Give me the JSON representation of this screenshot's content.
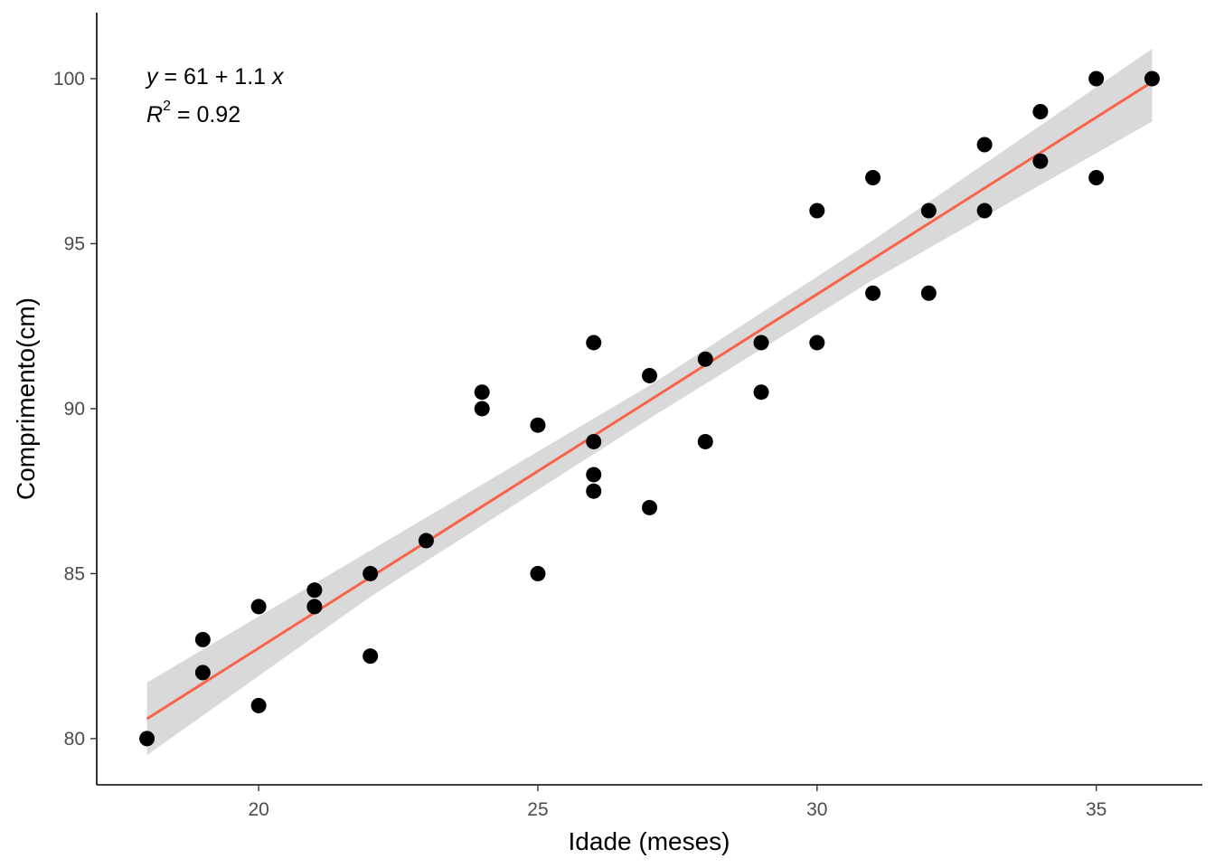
{
  "chart_data": {
    "type": "scatter",
    "title": "",
    "xlabel": "Idade (meses)",
    "ylabel": "Comprimento(cm)",
    "xlim": [
      17.1,
      36.9
    ],
    "ylim": [
      78.6,
      102.0
    ],
    "x_ticks": [
      20,
      25,
      30,
      35
    ],
    "y_ticks": [
      80,
      85,
      90,
      95,
      100
    ],
    "grid": false,
    "legend": "none",
    "points": [
      {
        "x": 18,
        "y": 80
      },
      {
        "x": 19,
        "y": 83
      },
      {
        "x": 19,
        "y": 82
      },
      {
        "x": 20,
        "y": 84
      },
      {
        "x": 20,
        "y": 81
      },
      {
        "x": 21,
        "y": 84.5
      },
      {
        "x": 21,
        "y": 84
      },
      {
        "x": 22,
        "y": 85
      },
      {
        "x": 22,
        "y": 82.5
      },
      {
        "x": 23,
        "y": 86
      },
      {
        "x": 24,
        "y": 90.5
      },
      {
        "x": 24,
        "y": 90
      },
      {
        "x": 25,
        "y": 89.5
      },
      {
        "x": 25,
        "y": 85
      },
      {
        "x": 26,
        "y": 92
      },
      {
        "x": 26,
        "y": 89
      },
      {
        "x": 26,
        "y": 88
      },
      {
        "x": 26,
        "y": 87.5
      },
      {
        "x": 27,
        "y": 91
      },
      {
        "x": 27,
        "y": 87
      },
      {
        "x": 28,
        "y": 91.5
      },
      {
        "x": 28,
        "y": 89
      },
      {
        "x": 29,
        "y": 92
      },
      {
        "x": 29,
        "y": 90.5
      },
      {
        "x": 30,
        "y": 96
      },
      {
        "x": 30,
        "y": 92
      },
      {
        "x": 31,
        "y": 97
      },
      {
        "x": 31,
        "y": 93.5
      },
      {
        "x": 32,
        "y": 96
      },
      {
        "x": 32,
        "y": 93.5
      },
      {
        "x": 33,
        "y": 98
      },
      {
        "x": 33,
        "y": 96
      },
      {
        "x": 34,
        "y": 99
      },
      {
        "x": 34,
        "y": 97.5
      },
      {
        "x": 35,
        "y": 100
      },
      {
        "x": 35,
        "y": 97
      },
      {
        "x": 36,
        "y": 100
      }
    ],
    "fit_line": {
      "x_start": 18,
      "y_start": 80.6,
      "x_end": 36,
      "y_end": 99.9,
      "color": "#f8634a"
    },
    "confidence_band": {
      "color": "#d9d9d9",
      "points": [
        {
          "x": 18,
          "lower": 79.5,
          "upper": 81.7
        },
        {
          "x": 22,
          "lower": 84.3,
          "upper": 85.7
        },
        {
          "x": 27,
          "lower": 89.7,
          "upper": 90.7
        },
        {
          "x": 31,
          "lower": 93.9,
          "upper": 95.1
        },
        {
          "x": 36,
          "lower": 98.7,
          "upper": 100.9
        }
      ]
    },
    "point_color": "#000000",
    "annotation": {
      "eq_y": "y",
      "eq_rest": " = 61 + 1.1 ",
      "eq_x": "x",
      "r2_symbol": "R",
      "r2_sup": "2",
      "r2_value": " = 0.92"
    }
  }
}
